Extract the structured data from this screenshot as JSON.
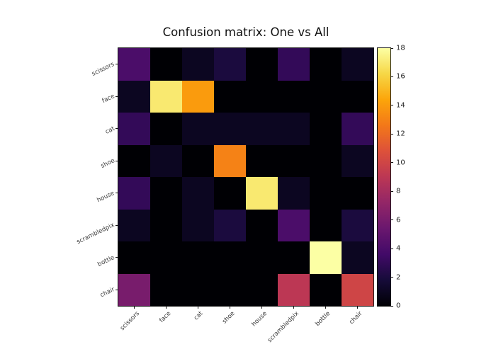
{
  "figure": {
    "title": "Confusion matrix: One vs All"
  },
  "chart_data": {
    "type": "heatmap",
    "title": "Confusion matrix: One vs All",
    "x_categories": [
      "scissors",
      "face",
      "cat",
      "shoe",
      "house",
      "scrambledpix",
      "bottle",
      "chair"
    ],
    "y_categories": [
      "scissors",
      "face",
      "cat",
      "shoe",
      "house",
      "scrambledpix",
      "bottle",
      "chair"
    ],
    "matrix": [
      [
        4,
        0,
        1,
        2,
        0,
        3,
        0,
        1
      ],
      [
        1,
        17,
        14,
        0,
        0,
        0,
        0,
        0
      ],
      [
        3,
        0,
        1,
        1,
        1,
        1,
        0,
        3
      ],
      [
        0,
        1,
        0,
        13,
        0,
        0,
        0,
        1
      ],
      [
        3,
        0,
        1,
        0,
        17,
        1,
        0,
        0
      ],
      [
        1,
        0,
        1,
        2,
        0,
        4,
        0,
        2
      ],
      [
        0,
        0,
        0,
        0,
        0,
        0,
        18,
        1
      ],
      [
        6,
        0,
        0,
        0,
        0,
        9,
        0,
        10
      ]
    ],
    "vmin": 0,
    "vmax": 18,
    "colormap": "inferno",
    "colorbar_ticks": [
      0,
      2,
      4,
      6,
      8,
      10,
      12,
      14,
      16,
      18
    ],
    "colorbar_position": "right",
    "grid": false,
    "x_tick_rotation_deg": 45,
    "y_tick_rotation_deg": 26
  }
}
